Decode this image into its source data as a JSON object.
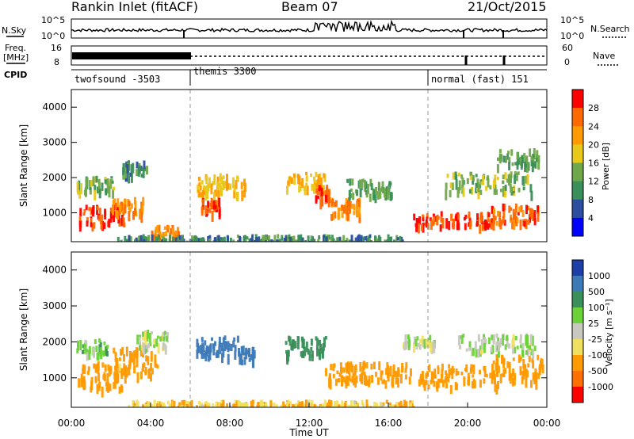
{
  "header": {
    "station": "Rankin Inlet (fitACF)",
    "beam": "Beam 07",
    "date": "21/Oct/2015"
  },
  "left_labels": {
    "nsky": "N.Sky",
    "freq_top": "Freq.",
    "freq_unit": "[MHz]",
    "cpid": "CPID"
  },
  "right_labels": {
    "nsearch": "N.Search",
    "nave": "Nave"
  },
  "colors": {
    "power_scale": [
      "#0000ff",
      "#2b4f9e",
      "#3a8f5a",
      "#6fa84a",
      "#e8c818",
      "#ff9a00",
      "#ff6a00",
      "#ff0000"
    ],
    "velocity_scale": [
      "#1d3fa8",
      "#3e7ab8",
      "#3a8f5a",
      "#6bd23a",
      "#c8c8c0",
      "#f0e060",
      "#ff9a00",
      "#ff7000",
      "#ff0000"
    ]
  },
  "chart_data": [
    {
      "type": "line",
      "panel": "noise",
      "left_axis": {
        "label": "N.Sky",
        "ticks": [
          "10^5",
          "10^0"
        ]
      },
      "right_axis": {
        "label": "N.Search",
        "ticks": [
          "10^5",
          "10^0"
        ]
      }
    },
    {
      "type": "line",
      "panel": "frequency",
      "left_axis": {
        "label": "Freq. [MHz]",
        "ticks": [
          "16",
          "8"
        ]
      },
      "right_axis": {
        "label": "Nave",
        "ticks": [
          "60",
          "0"
        ]
      }
    },
    {
      "type": "table",
      "panel": "cpid",
      "label": "CPID",
      "segments": [
        {
          "name": "twofsound -3503",
          "start_hr": 0,
          "end_hr": 6
        },
        {
          "name": "themis 3300",
          "start_hr": 6,
          "end_hr": 18
        },
        {
          "name": "normal (fast) 151",
          "start_hr": 18,
          "end_hr": 24
        }
      ]
    },
    {
      "type": "heatmap",
      "panel": "power",
      "ylabel": "Slant Range [km]",
      "y_ticks": [
        "1000",
        "2000",
        "3000",
        "4000"
      ],
      "ylim": [
        180,
        4500
      ],
      "colorbar": {
        "label": "Power [dB]",
        "ticks": [
          "4",
          "8",
          "12",
          "16",
          "20",
          "24",
          "28"
        ]
      },
      "x_mode_changes_hr": [
        6,
        18
      ],
      "blobs": [
        {
          "t": 1.5,
          "r": 1000,
          "dt": 1.4,
          "dr": 350,
          "v": 28
        },
        {
          "t": 2.8,
          "r": 1250,
          "dt": 1.0,
          "dr": 300,
          "v": 24
        },
        {
          "t": 1.2,
          "r": 1850,
          "dt": 1.2,
          "dr": 260,
          "v": 14
        },
        {
          "t": 3.2,
          "r": 2300,
          "dt": 0.8,
          "dr": 250,
          "v": 10
        },
        {
          "t": 4.7,
          "r": 520,
          "dt": 0.9,
          "dr": 200,
          "v": 24
        },
        {
          "t": 7.6,
          "r": 1850,
          "dt": 1.6,
          "dr": 350,
          "v": 20
        },
        {
          "t": 7.0,
          "r": 1250,
          "dt": 0.6,
          "dr": 250,
          "v": 28
        },
        {
          "t": 11.8,
          "r": 1950,
          "dt": 1.2,
          "dr": 300,
          "v": 20
        },
        {
          "t": 12.7,
          "r": 1600,
          "dt": 0.5,
          "dr": 250,
          "v": 28
        },
        {
          "t": 13.8,
          "r": 1200,
          "dt": 0.9,
          "dr": 300,
          "v": 24
        },
        {
          "t": 15.0,
          "r": 1750,
          "dt": 1.4,
          "dr": 300,
          "v": 12
        },
        {
          "t": 19.2,
          "r": 850,
          "dt": 2.5,
          "dr": 250,
          "v": 28
        },
        {
          "t": 22.3,
          "r": 1000,
          "dt": 1.6,
          "dr": 350,
          "v": 26
        },
        {
          "t": 21.0,
          "r": 1900,
          "dt": 2.8,
          "dr": 350,
          "v": 14
        },
        {
          "t": 22.5,
          "r": 2600,
          "dt": 1.3,
          "dr": 300,
          "v": 12
        },
        {
          "t": 9.5,
          "r": 300,
          "dt": 9.0,
          "dr": 120,
          "v": 10
        }
      ]
    },
    {
      "type": "heatmap",
      "panel": "velocity",
      "ylabel": "Slant Range [km]",
      "y_ticks": [
        "1000",
        "2000",
        "3000",
        "4000"
      ],
      "ylim": [
        180,
        4500
      ],
      "xlabel": "Time UT",
      "x_ticks": [
        "00:00",
        "04:00",
        "08:00",
        "12:00",
        "16:00",
        "20:00",
        "00:00"
      ],
      "xlim_hr": [
        0,
        24
      ],
      "colorbar": {
        "label": "Velocity [m s⁻¹]",
        "ticks": [
          "1000",
          "500",
          "100",
          "25",
          "-25",
          "-100",
          "-500",
          "-1000"
        ]
      },
      "x_mode_changes_hr": [
        6,
        18
      ],
      "blobs": [
        {
          "t": 1.5,
          "r": 1100,
          "dt": 1.5,
          "dr": 450,
          "v": -300
        },
        {
          "t": 3.2,
          "r": 1500,
          "dt": 1.4,
          "dr": 500,
          "v": -150
        },
        {
          "t": 4.0,
          "r": 2100,
          "dt": 1.0,
          "dr": 300,
          "v": 10
        },
        {
          "t": 1.0,
          "r": 1900,
          "dt": 1.0,
          "dr": 250,
          "v": 60
        },
        {
          "t": 7.4,
          "r": 1900,
          "dt": 1.5,
          "dr": 350,
          "v": 600
        },
        {
          "t": 8.8,
          "r": 1700,
          "dt": 0.5,
          "dr": 250,
          "v": 900
        },
        {
          "t": 11.8,
          "r": 1900,
          "dt": 1.3,
          "dr": 350,
          "v": 300
        },
        {
          "t": 13.6,
          "r": 1200,
          "dt": 1.0,
          "dr": 350,
          "v": -400
        },
        {
          "t": 15.8,
          "r": 1200,
          "dt": 1.6,
          "dr": 350,
          "v": -300
        },
        {
          "t": 19.5,
          "r": 1100,
          "dt": 2.5,
          "dr": 400,
          "v": -250
        },
        {
          "t": 22.5,
          "r": 1300,
          "dt": 1.6,
          "dr": 450,
          "v": -350
        },
        {
          "t": 21.5,
          "r": 2000,
          "dt": 2.5,
          "dr": 300,
          "v": 15
        },
        {
          "t": 17.5,
          "r": 2050,
          "dt": 1.0,
          "dr": 200,
          "v": 0
        },
        {
          "t": 10.0,
          "r": 300,
          "dt": 9.0,
          "dr": 120,
          "v": -80
        }
      ]
    }
  ]
}
